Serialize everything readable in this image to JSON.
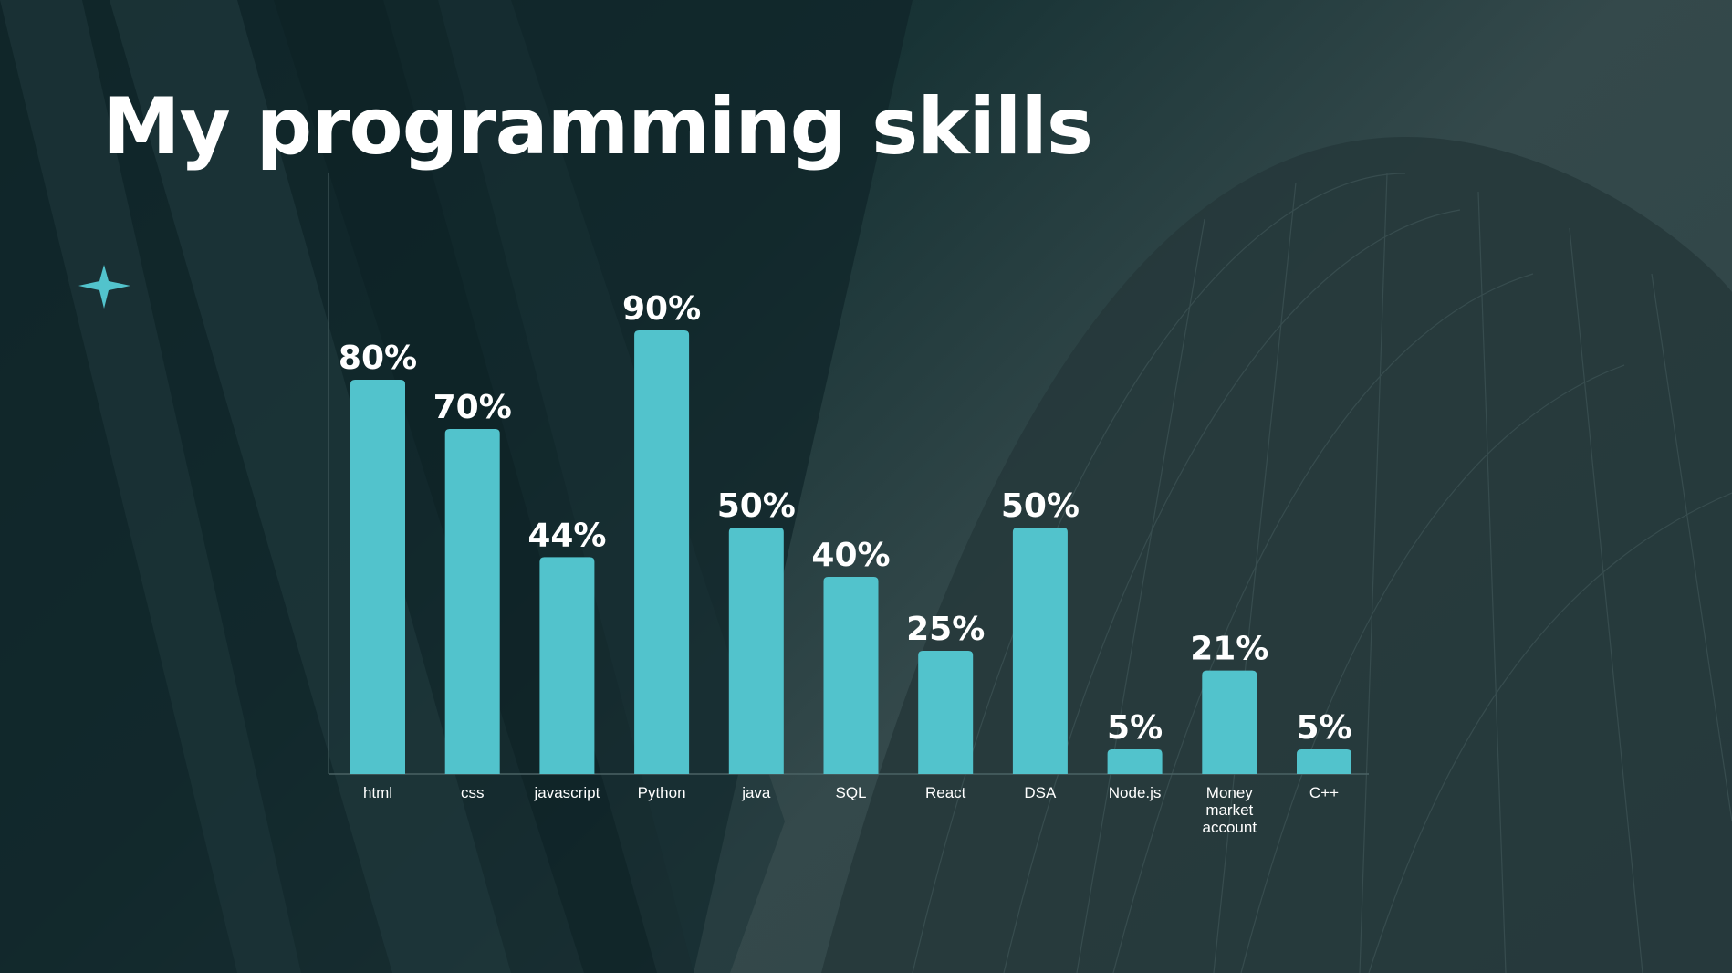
{
  "slide": {
    "title": "My programming skills",
    "accent_color": "#52c3cc",
    "decoration_icon": "sparkle-star-icon"
  },
  "chart_data": {
    "type": "bar",
    "title": "My programming skills",
    "xlabel": "",
    "ylabel": "",
    "ylim": [
      0,
      100
    ],
    "grid": false,
    "categories": [
      [
        "html"
      ],
      [
        "css"
      ],
      [
        "javascript"
      ],
      [
        "Python"
      ],
      [
        "java"
      ],
      [
        "SQL"
      ],
      [
        "React"
      ],
      [
        "DSA"
      ],
      [
        "Node.js"
      ],
      [
        "Money",
        "market",
        "account"
      ],
      [
        "C++"
      ]
    ],
    "values": [
      80,
      70,
      44,
      90,
      50,
      40,
      25,
      50,
      5,
      21,
      5
    ],
    "data_labels": [
      "80%",
      "70%",
      "44%",
      "90%",
      "50%",
      "40%",
      "25%",
      "50%",
      "5%",
      "21%",
      "5%"
    ]
  }
}
